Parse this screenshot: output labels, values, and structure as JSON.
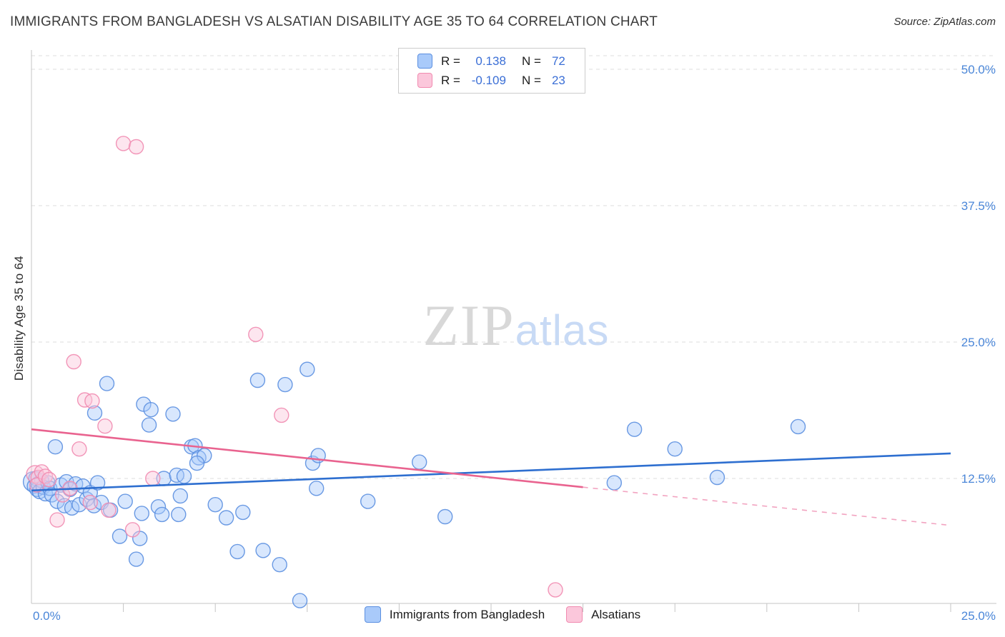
{
  "header": {
    "title": "IMMIGRANTS FROM BANGLADESH VS ALSATIAN DISABILITY AGE 35 TO 64 CORRELATION CHART",
    "source": "Source: ZipAtlas.com"
  },
  "watermark": {
    "zip": "ZIP",
    "atlas": "atlas"
  },
  "y_axis_title": "Disability Age 35 to 64",
  "x_axis": {
    "min_label": "0.0%",
    "max_label": "25.0%"
  },
  "legend_box": {
    "rows": [
      {
        "r_label": "R =",
        "r_value": "0.138",
        "n_label": "N =",
        "n_value": "72"
      },
      {
        "r_label": "R =",
        "r_value": "-0.109",
        "n_label": "N =",
        "n_value": "23"
      }
    ]
  },
  "colors": {
    "accent_value_blue": "#3b6fd6",
    "tick_label_blue": "#4a86d8",
    "gridline": "#dcdcdc",
    "blue_point_fill": "#a9cafa",
    "blue_point_stroke": "#5b8fe0",
    "blue_trend": "#2e6fd0",
    "pink_point_fill": "#fbc7db",
    "pink_point_stroke": "#f18bb0",
    "pink_trend": "#e9638f",
    "pink_trend_dashed": "#f2a3c0"
  },
  "chart_data": {
    "type": "scatter",
    "title": "Immigrants from Bangladesh vs Alsatian Disability Age 35 to 64 Correlation Chart",
    "xlabel": "Immigrants from Bangladesh (%)",
    "ylabel": "Disability Age 35 to 64",
    "xlim": [
      0,
      25
    ],
    "ylim": [
      0,
      52
    ],
    "grid": "horizontal-dashed",
    "legend_position": "bottom-center",
    "x_tick_values": [
      2.5,
      5,
      7.5,
      10,
      12.5,
      15,
      17.5,
      20,
      22.5,
      25
    ],
    "y_gridlines": [
      {
        "value": 50.0,
        "label": "50.0%"
      },
      {
        "value": 37.5,
        "label": "37.5%"
      },
      {
        "value": 25.0,
        "label": "25.0%"
      },
      {
        "value": 12.5,
        "label": "12.5%"
      }
    ],
    "series": [
      {
        "id": "bangladesh",
        "name": "Immigrants from Bangladesh",
        "R": 0.138,
        "N": 72,
        "fill": "#a9cafa",
        "stroke": "#5b8fe0",
        "points": [
          [
            0.05,
            12.2,
            14
          ],
          [
            0.08,
            11.8
          ],
          [
            0.12,
            12.5
          ],
          [
            0.15,
            11.5
          ],
          [
            0.18,
            12.0
          ],
          [
            0.22,
            11.3
          ],
          [
            0.28,
            12.3
          ],
          [
            0.32,
            11.7
          ],
          [
            0.38,
            11.1
          ],
          [
            0.45,
            12.1
          ],
          [
            0.5,
            11.6
          ],
          [
            0.55,
            11.0
          ],
          [
            0.65,
            15.4
          ],
          [
            0.7,
            10.4
          ],
          [
            0.8,
            11.9
          ],
          [
            0.9,
            10.0
          ],
          [
            0.95,
            12.2
          ],
          [
            1.05,
            11.5
          ],
          [
            1.1,
            9.8
          ],
          [
            1.2,
            12.0
          ],
          [
            1.3,
            10.1
          ],
          [
            1.4,
            11.8
          ],
          [
            1.5,
            10.6
          ],
          [
            1.6,
            11.2
          ],
          [
            1.7,
            10.0
          ],
          [
            1.8,
            12.1
          ],
          [
            1.9,
            10.3
          ],
          [
            2.05,
            21.2
          ],
          [
            1.72,
            18.5
          ],
          [
            3.05,
            19.3
          ],
          [
            3.25,
            18.8
          ],
          [
            3.2,
            17.4
          ],
          [
            3.85,
            18.4
          ],
          [
            4.35,
            15.4
          ],
          [
            4.45,
            15.5
          ],
          [
            4.55,
            14.4
          ],
          [
            4.7,
            14.6
          ],
          [
            4.5,
            13.9
          ],
          [
            6.15,
            21.5
          ],
          [
            6.9,
            21.1
          ],
          [
            7.5,
            22.5
          ],
          [
            7.65,
            13.9
          ],
          [
            7.8,
            14.6
          ],
          [
            7.75,
            11.6
          ],
          [
            9.15,
            10.4
          ],
          [
            10.55,
            14.0
          ],
          [
            11.25,
            9.0
          ],
          [
            15.85,
            12.1
          ],
          [
            16.4,
            17.0
          ],
          [
            17.5,
            15.2
          ],
          [
            18.65,
            12.6
          ],
          [
            20.85,
            17.25
          ],
          [
            2.85,
            5.1
          ],
          [
            5.6,
            5.8
          ],
          [
            6.3,
            5.9
          ],
          [
            6.75,
            4.6
          ],
          [
            7.3,
            1.3
          ],
          [
            2.4,
            7.2
          ],
          [
            2.95,
            7.0
          ],
          [
            3.0,
            9.3
          ],
          [
            2.55,
            10.4
          ],
          [
            2.15,
            9.6
          ],
          [
            3.45,
            9.9
          ],
          [
            3.55,
            9.2
          ],
          [
            4.0,
            9.2
          ],
          [
            4.05,
            10.9
          ],
          [
            3.6,
            12.5
          ],
          [
            3.95,
            12.8
          ],
          [
            4.15,
            12.7
          ],
          [
            5.0,
            10.1
          ],
          [
            5.3,
            8.9
          ],
          [
            5.75,
            9.4
          ]
        ]
      },
      {
        "id": "alsatians",
        "name": "Alsatians",
        "R": -0.109,
        "N": 23,
        "fill": "#fbc7db",
        "stroke": "#f18bb0",
        "points": [
          [
            2.5,
            43.2
          ],
          [
            2.85,
            42.9
          ],
          [
            1.15,
            23.2
          ],
          [
            6.1,
            25.7
          ],
          [
            1.45,
            19.7
          ],
          [
            1.65,
            19.6
          ],
          [
            2.0,
            17.3
          ],
          [
            1.3,
            15.2
          ],
          [
            6.8,
            18.3
          ],
          [
            0.1,
            12.9,
            12
          ],
          [
            0.18,
            12.6
          ],
          [
            0.28,
            13.1
          ],
          [
            0.15,
            11.9
          ],
          [
            0.38,
            12.7
          ],
          [
            0.48,
            12.4
          ],
          [
            0.7,
            8.7
          ],
          [
            0.85,
            11.0
          ],
          [
            1.05,
            11.6
          ],
          [
            1.6,
            10.3
          ],
          [
            2.1,
            9.6
          ],
          [
            2.75,
            7.8
          ],
          [
            3.3,
            12.5
          ],
          [
            14.25,
            2.3
          ]
        ]
      }
    ],
    "trend_lines": [
      {
        "series": "Immigrants from Bangladesh",
        "style": "solid",
        "color": "#2e6fd0",
        "x1": 0,
        "y1": 11.4,
        "x2": 25,
        "y2": 14.8
      },
      {
        "series": "Alsatians",
        "style": "solid",
        "color": "#e9638f",
        "x1": 0,
        "y1": 17.0,
        "x2": 15,
        "y2": 11.7
      },
      {
        "series": "Alsatians",
        "style": "dashed",
        "color": "#f2a3c0",
        "x1": 15,
        "y1": 11.7,
        "x2": 25,
        "y2": 8.2
      }
    ]
  }
}
